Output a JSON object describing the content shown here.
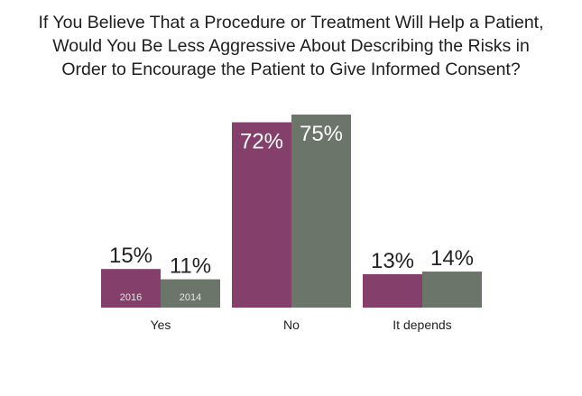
{
  "chart_data": {
    "type": "bar",
    "title_lines": [
      "If You Believe That a Procedure or Treatment Will Help a Patient,",
      "Would You Be Less Aggressive About Describing the Risks in",
      "Order to Encourage the Patient to Give Informed Consent?"
    ],
    "categories": [
      "Yes",
      "No",
      "It depends"
    ],
    "series": [
      {
        "name": "2016",
        "values": [
          15,
          72,
          13
        ],
        "labels": [
          "15%",
          "72%",
          "13%"
        ],
        "color": "#843f6a"
      },
      {
        "name": "2014",
        "values": [
          11,
          75,
          14
        ],
        "labels": [
          "11%",
          "75%",
          "14%"
        ],
        "color": "#6c7569"
      }
    ],
    "ylim": [
      0,
      75
    ],
    "grid": false,
    "legend": "inside-bars-yes-group"
  }
}
